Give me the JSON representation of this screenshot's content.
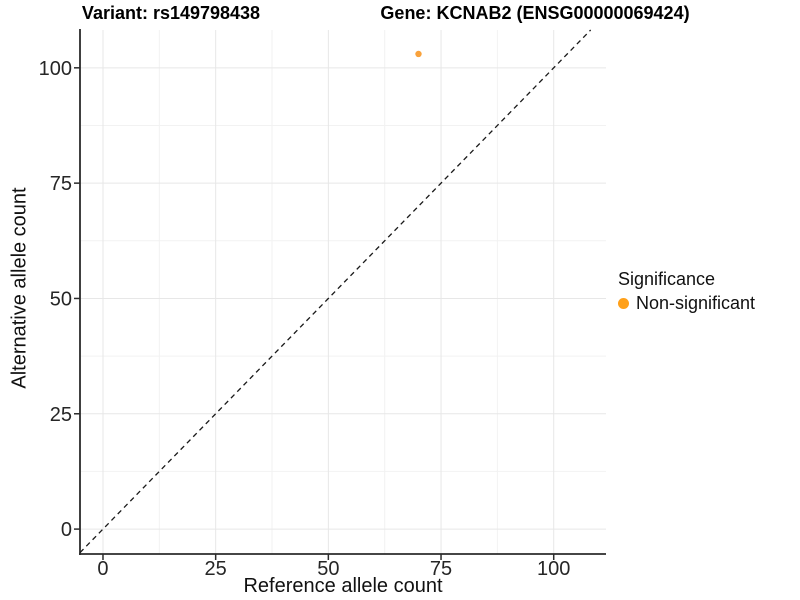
{
  "titles": {
    "variant": "Variant: rs149798438",
    "gene": "Gene: KCNAB2 (ENSG00000069424)"
  },
  "legend": {
    "title": "Significance",
    "items": [
      {
        "label": "Non-significant",
        "color": "#FFA019"
      }
    ]
  },
  "chart_data": {
    "type": "scatter",
    "title": "",
    "xlabel": "Reference allele count",
    "ylabel": "Alternative allele count",
    "x_ticks": [
      0,
      25,
      50,
      75,
      100
    ],
    "y_ticks": [
      0,
      25,
      50,
      75,
      100
    ],
    "xlim": [
      -5.1,
      111.6
    ],
    "ylim": [
      -5.4,
      108.2
    ],
    "grid": true,
    "minor_grid": true,
    "legend_position": "right",
    "reference_line": {
      "type": "identity",
      "slope": 1,
      "intercept": 0,
      "style": "dashed",
      "color": "#1a1a1a"
    },
    "series": [
      {
        "name": "Non-significant",
        "color": "#F9A23C",
        "point_radius": 3.2,
        "points": [
          {
            "x": 70,
            "y": 103
          }
        ]
      }
    ],
    "colors": {
      "major_grid": "#E7E7E7",
      "minor_grid": "#F2F2F2",
      "axis_line": "#2b2b2b",
      "tick_text": "#262626"
    }
  }
}
